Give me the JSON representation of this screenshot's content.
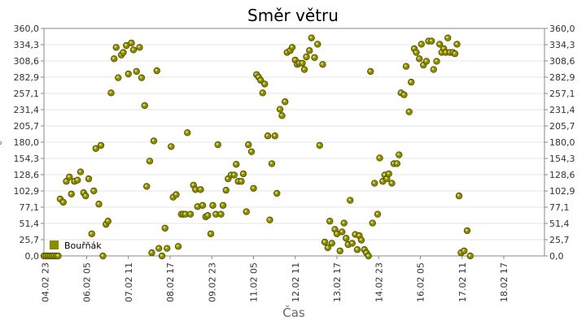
{
  "chart_data": {
    "type": "scatter",
    "title": "Směr větru",
    "xlabel": "Čas",
    "ylabel": "°",
    "y_ticks": [
      "0,0",
      "25,7",
      "51,4",
      "77,1",
      "102,9",
      "128,6",
      "154,3",
      "180,0",
      "205,7",
      "231,4",
      "257,1",
      "282,9",
      "308,6",
      "334,3",
      "360,0"
    ],
    "ylim": [
      0,
      360
    ],
    "x_ticks": [
      "04.02 23",
      "06.02 05",
      "07.02 11",
      "08.02 17",
      "09.02 23",
      "11.02 05",
      "12.02 11",
      "13.02 17",
      "14.02 23",
      "16.02 05",
      "17.02 11",
      "18.02 17"
    ],
    "xlim": [
      0,
      24.6
    ],
    "grid": "horizontal",
    "legend_position": "bottom-left",
    "color": "#8b8b00",
    "series": [
      {
        "name": "Bouřňák",
        "points": [
          [
            0.0,
            0
          ],
          [
            0.1,
            0
          ],
          [
            0.2,
            0
          ],
          [
            0.3,
            0
          ],
          [
            0.4,
            0
          ],
          [
            0.5,
            0
          ],
          [
            0.6,
            0
          ],
          [
            0.7,
            0
          ],
          [
            0.8,
            90
          ],
          [
            0.95,
            85
          ],
          [
            1.1,
            118
          ],
          [
            1.25,
            125
          ],
          [
            1.35,
            98
          ],
          [
            1.5,
            118
          ],
          [
            1.65,
            120
          ],
          [
            1.8,
            133
          ],
          [
            1.95,
            100
          ],
          [
            2.05,
            95
          ],
          [
            2.2,
            122
          ],
          [
            2.35,
            35
          ],
          [
            2.45,
            103
          ],
          [
            2.55,
            170
          ],
          [
            2.7,
            82
          ],
          [
            2.8,
            175
          ],
          [
            2.9,
            0
          ],
          [
            3.05,
            50
          ],
          [
            3.15,
            55
          ],
          [
            3.3,
            258
          ],
          [
            3.45,
            312
          ],
          [
            3.55,
            330
          ],
          [
            3.65,
            282
          ],
          [
            3.8,
            318
          ],
          [
            3.9,
            322
          ],
          [
            4.05,
            333
          ],
          [
            4.15,
            288
          ],
          [
            4.3,
            337
          ],
          [
            4.4,
            326
          ],
          [
            4.55,
            292
          ],
          [
            4.7,
            330
          ],
          [
            4.8,
            282
          ],
          [
            4.95,
            238
          ],
          [
            5.05,
            110
          ],
          [
            5.2,
            150
          ],
          [
            5.3,
            5
          ],
          [
            5.4,
            182
          ],
          [
            5.55,
            293
          ],
          [
            5.65,
            12
          ],
          [
            5.8,
            0
          ],
          [
            5.95,
            44
          ],
          [
            6.05,
            12
          ],
          [
            6.25,
            173
          ],
          [
            6.35,
            93
          ],
          [
            6.5,
            97
          ],
          [
            6.6,
            15
          ],
          [
            6.75,
            66
          ],
          [
            6.85,
            66
          ],
          [
            6.95,
            66
          ],
          [
            7.05,
            195
          ],
          [
            7.2,
            66
          ],
          [
            7.35,
            112
          ],
          [
            7.45,
            105
          ],
          [
            7.55,
            78
          ],
          [
            7.7,
            105
          ],
          [
            7.8,
            80
          ],
          [
            7.95,
            62
          ],
          [
            8.05,
            64
          ],
          [
            8.2,
            35
          ],
          [
            8.3,
            80
          ],
          [
            8.45,
            66
          ],
          [
            8.55,
            176
          ],
          [
            8.7,
            66
          ],
          [
            8.8,
            80
          ],
          [
            8.95,
            104
          ],
          [
            9.05,
            122
          ],
          [
            9.2,
            128
          ],
          [
            9.35,
            128
          ],
          [
            9.45,
            145
          ],
          [
            9.55,
            118
          ],
          [
            9.7,
            118
          ],
          [
            9.8,
            130
          ],
          [
            9.95,
            70
          ],
          [
            10.05,
            176
          ],
          [
            10.2,
            165
          ],
          [
            10.3,
            107
          ],
          [
            10.45,
            287
          ],
          [
            10.55,
            283
          ],
          [
            10.65,
            278
          ],
          [
            10.75,
            258
          ],
          [
            10.85,
            272
          ],
          [
            11.0,
            190
          ],
          [
            11.1,
            57
          ],
          [
            11.2,
            146
          ],
          [
            11.35,
            190
          ],
          [
            11.45,
            99
          ],
          [
            11.6,
            232
          ],
          [
            11.7,
            222
          ],
          [
            11.85,
            244
          ],
          [
            11.95,
            322
          ],
          [
            12.1,
            325
          ],
          [
            12.2,
            330
          ],
          [
            12.35,
            310
          ],
          [
            12.45,
            303
          ],
          [
            12.55,
            305
          ],
          [
            12.7,
            305
          ],
          [
            12.8,
            295
          ],
          [
            12.9,
            315
          ],
          [
            13.05,
            325
          ],
          [
            13.15,
            345
          ],
          [
            13.3,
            314
          ],
          [
            13.45,
            335
          ],
          [
            13.55,
            175
          ],
          [
            13.7,
            303
          ],
          [
            13.8,
            22
          ],
          [
            13.95,
            13
          ],
          [
            14.05,
            55
          ],
          [
            14.15,
            20
          ],
          [
            14.3,
            42
          ],
          [
            14.4,
            35
          ],
          [
            14.55,
            8
          ],
          [
            14.65,
            38
          ],
          [
            14.75,
            52
          ],
          [
            14.85,
            28
          ],
          [
            14.95,
            18
          ],
          [
            15.05,
            88
          ],
          [
            15.15,
            20
          ],
          [
            15.3,
            34
          ],
          [
            15.4,
            10
          ],
          [
            15.5,
            32
          ],
          [
            15.6,
            25
          ],
          [
            15.75,
            10
          ],
          [
            15.85,
            5
          ],
          [
            15.95,
            0
          ],
          [
            16.05,
            292
          ],
          [
            16.15,
            52
          ],
          [
            16.25,
            115
          ],
          [
            16.4,
            66
          ],
          [
            16.5,
            155
          ],
          [
            16.65,
            118
          ],
          [
            16.75,
            128
          ],
          [
            16.85,
            122
          ],
          [
            16.95,
            130
          ],
          [
            17.1,
            115
          ],
          [
            17.2,
            146
          ],
          [
            17.35,
            146
          ],
          [
            17.45,
            160
          ],
          [
            17.55,
            258
          ],
          [
            17.7,
            255
          ],
          [
            17.8,
            300
          ],
          [
            17.95,
            228
          ],
          [
            18.05,
            275
          ],
          [
            18.2,
            328
          ],
          [
            18.3,
            322
          ],
          [
            18.45,
            312
          ],
          [
            18.55,
            335
          ],
          [
            18.65,
            302
          ],
          [
            18.8,
            308
          ],
          [
            18.9,
            340
          ],
          [
            19.05,
            340
          ],
          [
            19.15,
            295
          ],
          [
            19.3,
            308
          ],
          [
            19.45,
            335
          ],
          [
            19.55,
            322
          ],
          [
            19.65,
            328
          ],
          [
            19.75,
            322
          ],
          [
            19.85,
            345
          ],
          [
            19.95,
            322
          ],
          [
            20.1,
            322
          ],
          [
            20.2,
            320
          ],
          [
            20.3,
            335
          ],
          [
            20.4,
            95
          ],
          [
            20.5,
            5
          ],
          [
            20.65,
            8
          ],
          [
            20.8,
            40
          ],
          [
            20.95,
            0
          ]
        ]
      }
    ]
  }
}
